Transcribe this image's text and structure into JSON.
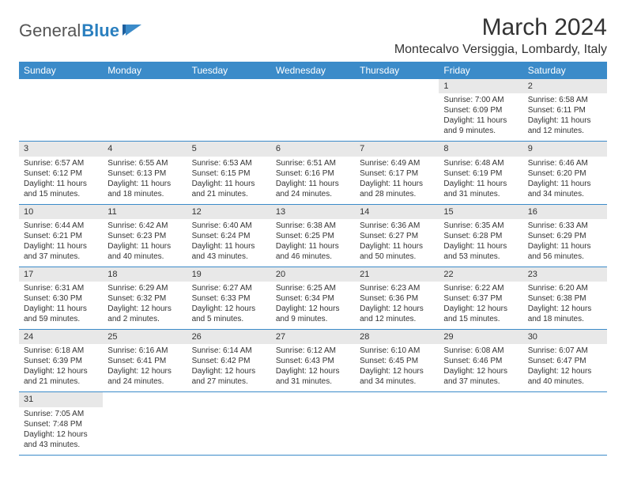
{
  "logo": {
    "text1": "General",
    "text2": "Blue"
  },
  "title": "March 2024",
  "location": "Montecalvo Versiggia, Lombardy, Italy",
  "colors": {
    "header_bg": "#3b8bc9",
    "header_text": "#ffffff",
    "daynum_bg": "#e8e8e8",
    "row_border": "#3b8bc9",
    "logo_gray": "#555555",
    "logo_blue": "#2a7fbf"
  },
  "day_names": [
    "Sunday",
    "Monday",
    "Tuesday",
    "Wednesday",
    "Thursday",
    "Friday",
    "Saturday"
  ],
  "weeks": [
    [
      {
        "empty": true
      },
      {
        "empty": true
      },
      {
        "empty": true
      },
      {
        "empty": true
      },
      {
        "empty": true
      },
      {
        "day": "1",
        "sunrise": "Sunrise: 7:00 AM",
        "sunset": "Sunset: 6:09 PM",
        "daylight1": "Daylight: 11 hours",
        "daylight2": "and 9 minutes."
      },
      {
        "day": "2",
        "sunrise": "Sunrise: 6:58 AM",
        "sunset": "Sunset: 6:11 PM",
        "daylight1": "Daylight: 11 hours",
        "daylight2": "and 12 minutes."
      }
    ],
    [
      {
        "day": "3",
        "sunrise": "Sunrise: 6:57 AM",
        "sunset": "Sunset: 6:12 PM",
        "daylight1": "Daylight: 11 hours",
        "daylight2": "and 15 minutes."
      },
      {
        "day": "4",
        "sunrise": "Sunrise: 6:55 AM",
        "sunset": "Sunset: 6:13 PM",
        "daylight1": "Daylight: 11 hours",
        "daylight2": "and 18 minutes."
      },
      {
        "day": "5",
        "sunrise": "Sunrise: 6:53 AM",
        "sunset": "Sunset: 6:15 PM",
        "daylight1": "Daylight: 11 hours",
        "daylight2": "and 21 minutes."
      },
      {
        "day": "6",
        "sunrise": "Sunrise: 6:51 AM",
        "sunset": "Sunset: 6:16 PM",
        "daylight1": "Daylight: 11 hours",
        "daylight2": "and 24 minutes."
      },
      {
        "day": "7",
        "sunrise": "Sunrise: 6:49 AM",
        "sunset": "Sunset: 6:17 PM",
        "daylight1": "Daylight: 11 hours",
        "daylight2": "and 28 minutes."
      },
      {
        "day": "8",
        "sunrise": "Sunrise: 6:48 AM",
        "sunset": "Sunset: 6:19 PM",
        "daylight1": "Daylight: 11 hours",
        "daylight2": "and 31 minutes."
      },
      {
        "day": "9",
        "sunrise": "Sunrise: 6:46 AM",
        "sunset": "Sunset: 6:20 PM",
        "daylight1": "Daylight: 11 hours",
        "daylight2": "and 34 minutes."
      }
    ],
    [
      {
        "day": "10",
        "sunrise": "Sunrise: 6:44 AM",
        "sunset": "Sunset: 6:21 PM",
        "daylight1": "Daylight: 11 hours",
        "daylight2": "and 37 minutes."
      },
      {
        "day": "11",
        "sunrise": "Sunrise: 6:42 AM",
        "sunset": "Sunset: 6:23 PM",
        "daylight1": "Daylight: 11 hours",
        "daylight2": "and 40 minutes."
      },
      {
        "day": "12",
        "sunrise": "Sunrise: 6:40 AM",
        "sunset": "Sunset: 6:24 PM",
        "daylight1": "Daylight: 11 hours",
        "daylight2": "and 43 minutes."
      },
      {
        "day": "13",
        "sunrise": "Sunrise: 6:38 AM",
        "sunset": "Sunset: 6:25 PM",
        "daylight1": "Daylight: 11 hours",
        "daylight2": "and 46 minutes."
      },
      {
        "day": "14",
        "sunrise": "Sunrise: 6:36 AM",
        "sunset": "Sunset: 6:27 PM",
        "daylight1": "Daylight: 11 hours",
        "daylight2": "and 50 minutes."
      },
      {
        "day": "15",
        "sunrise": "Sunrise: 6:35 AM",
        "sunset": "Sunset: 6:28 PM",
        "daylight1": "Daylight: 11 hours",
        "daylight2": "and 53 minutes."
      },
      {
        "day": "16",
        "sunrise": "Sunrise: 6:33 AM",
        "sunset": "Sunset: 6:29 PM",
        "daylight1": "Daylight: 11 hours",
        "daylight2": "and 56 minutes."
      }
    ],
    [
      {
        "day": "17",
        "sunrise": "Sunrise: 6:31 AM",
        "sunset": "Sunset: 6:30 PM",
        "daylight1": "Daylight: 11 hours",
        "daylight2": "and 59 minutes."
      },
      {
        "day": "18",
        "sunrise": "Sunrise: 6:29 AM",
        "sunset": "Sunset: 6:32 PM",
        "daylight1": "Daylight: 12 hours",
        "daylight2": "and 2 minutes."
      },
      {
        "day": "19",
        "sunrise": "Sunrise: 6:27 AM",
        "sunset": "Sunset: 6:33 PM",
        "daylight1": "Daylight: 12 hours",
        "daylight2": "and 5 minutes."
      },
      {
        "day": "20",
        "sunrise": "Sunrise: 6:25 AM",
        "sunset": "Sunset: 6:34 PM",
        "daylight1": "Daylight: 12 hours",
        "daylight2": "and 9 minutes."
      },
      {
        "day": "21",
        "sunrise": "Sunrise: 6:23 AM",
        "sunset": "Sunset: 6:36 PM",
        "daylight1": "Daylight: 12 hours",
        "daylight2": "and 12 minutes."
      },
      {
        "day": "22",
        "sunrise": "Sunrise: 6:22 AM",
        "sunset": "Sunset: 6:37 PM",
        "daylight1": "Daylight: 12 hours",
        "daylight2": "and 15 minutes."
      },
      {
        "day": "23",
        "sunrise": "Sunrise: 6:20 AM",
        "sunset": "Sunset: 6:38 PM",
        "daylight1": "Daylight: 12 hours",
        "daylight2": "and 18 minutes."
      }
    ],
    [
      {
        "day": "24",
        "sunrise": "Sunrise: 6:18 AM",
        "sunset": "Sunset: 6:39 PM",
        "daylight1": "Daylight: 12 hours",
        "daylight2": "and 21 minutes."
      },
      {
        "day": "25",
        "sunrise": "Sunrise: 6:16 AM",
        "sunset": "Sunset: 6:41 PM",
        "daylight1": "Daylight: 12 hours",
        "daylight2": "and 24 minutes."
      },
      {
        "day": "26",
        "sunrise": "Sunrise: 6:14 AM",
        "sunset": "Sunset: 6:42 PM",
        "daylight1": "Daylight: 12 hours",
        "daylight2": "and 27 minutes."
      },
      {
        "day": "27",
        "sunrise": "Sunrise: 6:12 AM",
        "sunset": "Sunset: 6:43 PM",
        "daylight1": "Daylight: 12 hours",
        "daylight2": "and 31 minutes."
      },
      {
        "day": "28",
        "sunrise": "Sunrise: 6:10 AM",
        "sunset": "Sunset: 6:45 PM",
        "daylight1": "Daylight: 12 hours",
        "daylight2": "and 34 minutes."
      },
      {
        "day": "29",
        "sunrise": "Sunrise: 6:08 AM",
        "sunset": "Sunset: 6:46 PM",
        "daylight1": "Daylight: 12 hours",
        "daylight2": "and 37 minutes."
      },
      {
        "day": "30",
        "sunrise": "Sunrise: 6:07 AM",
        "sunset": "Sunset: 6:47 PM",
        "daylight1": "Daylight: 12 hours",
        "daylight2": "and 40 minutes."
      }
    ],
    [
      {
        "day": "31",
        "sunrise": "Sunrise: 7:05 AM",
        "sunset": "Sunset: 7:48 PM",
        "daylight1": "Daylight: 12 hours",
        "daylight2": "and 43 minutes."
      },
      {
        "empty": true
      },
      {
        "empty": true
      },
      {
        "empty": true
      },
      {
        "empty": true
      },
      {
        "empty": true
      },
      {
        "empty": true
      }
    ]
  ]
}
